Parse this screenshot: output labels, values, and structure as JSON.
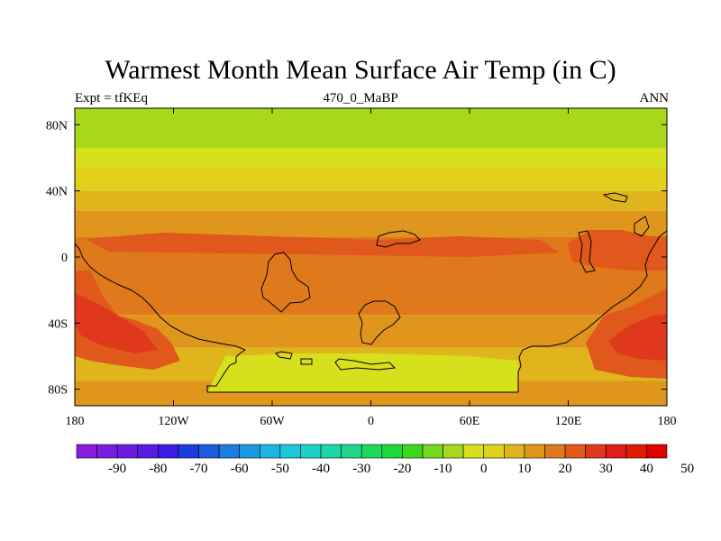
{
  "title": "Warmest Month Mean Surface Air Temp (in C)",
  "subtitle_left": "Expt = tfKEq",
  "subtitle_center": "470_0_MaBP",
  "subtitle_right": "ANN",
  "y_ticks": [
    {
      "value": 80,
      "label": "80N"
    },
    {
      "value": 40,
      "label": "40N"
    },
    {
      "value": 0,
      "label": "0"
    },
    {
      "value": -40,
      "label": "40S"
    },
    {
      "value": -80,
      "label": "80S"
    }
  ],
  "x_ticks": [
    {
      "value": -180,
      "label": "180"
    },
    {
      "value": -120,
      "label": "120W"
    },
    {
      "value": -60,
      "label": "60W"
    },
    {
      "value": 0,
      "label": "0"
    },
    {
      "value": 60,
      "label": "60E"
    },
    {
      "value": 120,
      "label": "120E"
    },
    {
      "value": 180,
      "label": "180"
    }
  ],
  "colorbar": {
    "labels": [
      "-90",
      "-80",
      "-70",
      "-60",
      "-50",
      "-40",
      "-30",
      "-20",
      "-10",
      "0",
      "10",
      "20",
      "30",
      "40",
      "50"
    ],
    "colors": [
      "#8a1ce0",
      "#7a1ce0",
      "#6c1ce0",
      "#581ce0",
      "#3c1ce0",
      "#1c3ce0",
      "#1c5ce0",
      "#1c7ce0",
      "#1c96e0",
      "#1cb4e0",
      "#1cc8dc",
      "#1cd2c8",
      "#1cd6a8",
      "#1cd888",
      "#1cd85c",
      "#1cd838",
      "#3cd81c",
      "#74d81c",
      "#a8d81c",
      "#d6e01c",
      "#e0d21c",
      "#e0b41c",
      "#e0961c",
      "#e0781c",
      "#e0581c",
      "#e0381c",
      "#e01c1c",
      "#e01c00",
      "#e00000"
    ]
  },
  "map_data": {
    "lon_range": [
      -180,
      180
    ],
    "lat_range": [
      -90,
      90
    ],
    "bands": [
      {
        "lat_from": 90,
        "lat_to": 66,
        "color": "#a8d81c"
      },
      {
        "lat_from": 66,
        "lat_to": 55,
        "color": "#d6e01c"
      },
      {
        "lat_from": 55,
        "lat_to": 40,
        "color": "#e0d21c"
      },
      {
        "lat_from": 40,
        "lat_to": 28,
        "color": "#e0b41c"
      },
      {
        "lat_from": 28,
        "lat_to": 12,
        "color": "#e0961c"
      },
      {
        "lat_from": 12,
        "lat_to": -35,
        "color": "#e0781c"
      },
      {
        "lat_from": -35,
        "lat_to": -55,
        "color": "#e0961c"
      },
      {
        "lat_from": -55,
        "lat_to": -75,
        "color": "#e0b41c"
      },
      {
        "lat_from": -75,
        "lat_to": -90,
        "color": "#e0961c"
      }
    ]
  }
}
